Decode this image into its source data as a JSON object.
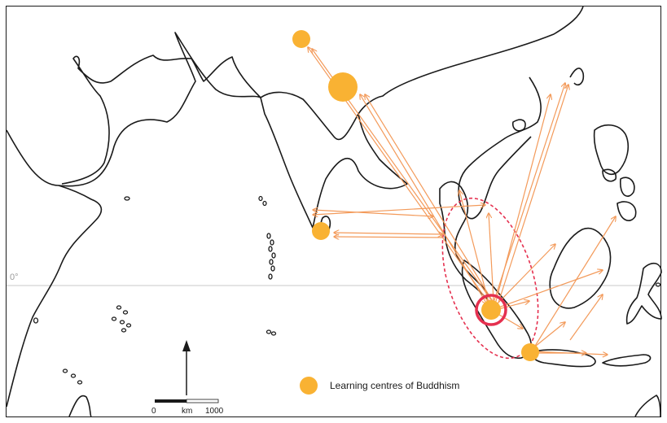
{
  "map": {
    "equator_label": "0°",
    "legend": {
      "label": "Learning centres of Buddhism",
      "marker_color": "#F9B233"
    },
    "scale_bar": {
      "start_label": "0",
      "unit_label": "km",
      "end_label": "1000"
    },
    "colors": {
      "coast": "#1a1a1a",
      "arrow": "#F39A5A",
      "centre": "#F9B233",
      "highlight_ring": "#E5304F",
      "zone_outline": "#E5304F",
      "equator": "#c8c8c8",
      "equator_label": "#9a9a9a"
    }
  }
}
